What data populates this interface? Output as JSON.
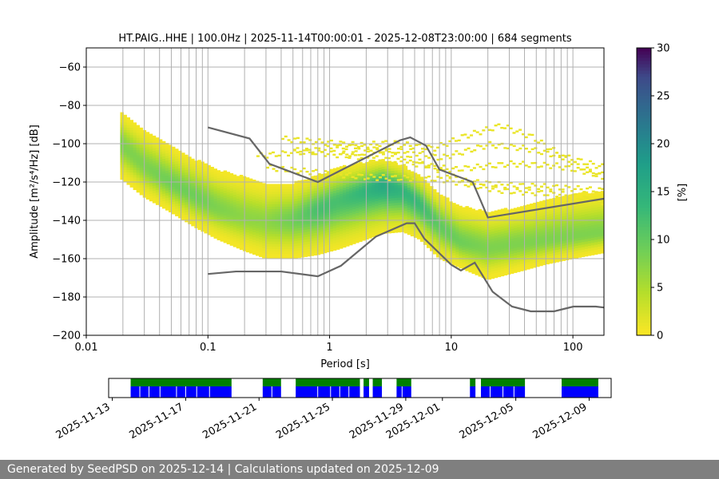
{
  "chart_data": [
    {
      "type": "heatmap",
      "title": "HT.PAIG..HHE | 100.0Hz | 2025-11-14T00:00:01 - 2025-12-08T23:00:00 | 684 segments",
      "xlabel": "Period [s]",
      "ylabel": "Amplitude [m²/s⁴/Hz] [dB]",
      "x_scale": "log",
      "xlim": [
        0.01,
        180
      ],
      "ylim": [
        -200,
        -50
      ],
      "x_ticks": [
        {
          "value": 0.01,
          "label": "0.01"
        },
        {
          "value": 0.1,
          "label": "0.1"
        },
        {
          "value": 1,
          "label": "1"
        },
        {
          "value": 10,
          "label": "10"
        },
        {
          "value": 100,
          "label": "100"
        }
      ],
      "y_ticks": [
        {
          "value": -60,
          "label": "−60"
        },
        {
          "value": -80,
          "label": "−80"
        },
        {
          "value": -100,
          "label": "−100"
        },
        {
          "value": -120,
          "label": "−120"
        },
        {
          "value": -140,
          "label": "−140"
        },
        {
          "value": -160,
          "label": "−160"
        },
        {
          "value": -180,
          "label": "−180"
        },
        {
          "value": -200,
          "label": "−200"
        }
      ],
      "grid": true,
      "colormap": "viridis",
      "colorbar": {
        "label": "[%]",
        "range": [
          0,
          30
        ],
        "ticks": [
          {
            "value": 0,
            "label": "0"
          },
          {
            "value": 5,
            "label": "5"
          },
          {
            "value": 10,
            "label": "10"
          },
          {
            "value": 15,
            "label": "15"
          },
          {
            "value": 20,
            "label": "20"
          },
          {
            "value": 25,
            "label": "25"
          },
          {
            "value": 30,
            "label": "30"
          }
        ]
      },
      "density": {
        "period": [
          0.019,
          0.03,
          0.05,
          0.08,
          0.12,
          0.2,
          0.3,
          0.5,
          0.8,
          1.2,
          2.0,
          2.7,
          4.0,
          5.5,
          8.0,
          12,
          20,
          35,
          60,
          100,
          180
        ],
        "mode_db": [
          -100,
          -112,
          -121,
          -128,
          -134,
          -139,
          -141,
          -140,
          -135,
          -130,
          -125,
          -122,
          -125,
          -132,
          -143,
          -152,
          -155,
          -153,
          -151,
          -149,
          -147
        ],
        "lower_db": [
          -118,
          -128,
          -136,
          -144,
          -150,
          -156,
          -160,
          -160,
          -158,
          -155,
          -150,
          -147,
          -146,
          -150,
          -160,
          -165,
          -171,
          -167,
          -163,
          -160,
          -157
        ],
        "upper_db": [
          -84,
          -93,
          -102,
          -109,
          -114,
          -118,
          -121,
          -121,
          -117,
          -113,
          -110,
          -109,
          -112,
          -117,
          -127,
          -133,
          -136,
          -134,
          -130,
          -127,
          -125
        ],
        "mode_pct": [
          8,
          8,
          9,
          9,
          8,
          7,
          7,
          9,
          12,
          12,
          14,
          16,
          14,
          13,
          10,
          9,
          8,
          8,
          8,
          8,
          8
        ]
      },
      "sparse_traces": [
        [
          [
            0.4,
            -97
          ],
          [
            1.5,
            -100
          ],
          [
            3.0,
            -104
          ],
          [
            6,
            -110
          ],
          [
            12,
            -119
          ],
          [
            25,
            -121
          ],
          [
            60,
            -122
          ],
          [
            180,
            -124
          ]
        ],
        [
          [
            0.25,
            -106
          ],
          [
            1,
            -102
          ],
          [
            3,
            -99
          ],
          [
            7,
            -102
          ],
          [
            12,
            -96
          ],
          [
            25,
            -90
          ],
          [
            45,
            -96
          ],
          [
            100,
            -110
          ],
          [
            180,
            -118
          ]
        ],
        [
          [
            1.2,
            -105
          ],
          [
            4,
            -103
          ],
          [
            8,
            -107
          ],
          [
            20,
            -100
          ],
          [
            40,
            -102
          ],
          [
            90,
            -107
          ],
          [
            180,
            -112
          ]
        ],
        [
          [
            0.5,
            -103
          ],
          [
            3,
            -108
          ],
          [
            10,
            -113
          ],
          [
            30,
            -110
          ],
          [
            70,
            -111
          ],
          [
            180,
            -116
          ]
        ],
        [
          [
            0.3,
            -112
          ],
          [
            2,
            -117
          ],
          [
            8,
            -118
          ],
          [
            25,
            -124
          ],
          [
            80,
            -126
          ],
          [
            180,
            -130
          ]
        ]
      ],
      "series": [
        {
          "name": "",
          "color": "#666666",
          "x": [
            0.1,
            0.22,
            0.32,
            0.8,
            3.8,
            4.6,
            6.2,
            8.0,
            15,
            20,
            180
          ],
          "y": [
            -91.5,
            -97.3,
            -110.5,
            -120.0,
            -98.2,
            -96.7,
            -101.0,
            -113.5,
            -120.0,
            -138.5,
            -128.7
          ]
        },
        {
          "name": "",
          "color": "#666666",
          "x": [
            0.1,
            0.17,
            0.4,
            0.8,
            1.24,
            2.4,
            4.3,
            5.0,
            6.0,
            10.0,
            12.0,
            15.6,
            21.9,
            31.6,
            45,
            70,
            101,
            154,
            180
          ],
          "y": [
            -168.0,
            -166.7,
            -166.7,
            -169.2,
            -163.7,
            -148.5,
            -141.5,
            -141.5,
            -149.5,
            -163.2,
            -166.2,
            -162.1,
            -177.3,
            -185.0,
            -187.5,
            -187.5,
            -185.0,
            -185.0,
            -185.5
          ]
        }
      ]
    },
    {
      "type": "timeline",
      "x_ticks": [
        "2025-11-13",
        "2025-11-17",
        "2025-11-21",
        "2025-11-25",
        "2025-11-29",
        "2025-12-01",
        "2025-12-05",
        "2025-12-09"
      ],
      "x_tick_days": [
        0,
        4,
        8,
        12,
        16,
        18,
        22,
        26
      ],
      "date_origin": "2025-11-13",
      "xlim_days": [
        -0.2,
        27.2
      ],
      "colors": {
        "available": "#008000",
        "processed": "#0000ff"
      },
      "segments_days": [
        [
          1.0,
          6.5
        ],
        [
          8.2,
          9.2
        ],
        [
          10.0,
          13.5
        ],
        [
          13.7,
          14.0
        ],
        [
          14.2,
          14.7
        ],
        [
          15.5,
          16.3
        ],
        [
          19.5,
          19.8
        ],
        [
          20.1,
          22.5
        ],
        [
          24.5,
          26.5
        ]
      ],
      "gaps_days": [
        1.5,
        2.0,
        2.6,
        3.5,
        4.0,
        4.6,
        5.3,
        8.7,
        11.2,
        11.9,
        12.4,
        12.9,
        15.8,
        20.6,
        21.3,
        21.9
      ]
    }
  ],
  "footer": {
    "text": "Generated by SeedPSD on 2025-12-14 | Calculations updated on 2025-12-09"
  }
}
